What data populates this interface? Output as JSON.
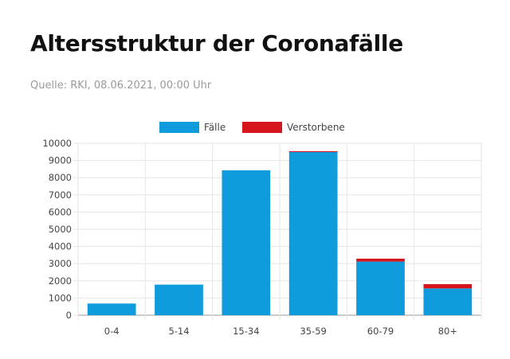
{
  "header": {
    "title": "Altersstruktur der Coronafälle",
    "source": "Quelle: RKI, 08.06.2021, 00:00 Uhr"
  },
  "colors": {
    "faelle": "#0f9bdc",
    "verstorbene": "#d7151c",
    "grid": "#e6e6e6",
    "axis": "#999999"
  },
  "chart_data": {
    "type": "bar",
    "stacked": true,
    "categories": [
      "0-4",
      "5-14",
      "15-34",
      "35-59",
      "60-79",
      "80+"
    ],
    "series": [
      {
        "name": "Fälle",
        "values": [
          680,
          1780,
          8430,
          9490,
          3120,
          1560
        ]
      },
      {
        "name": "Verstorbene",
        "values": [
          0,
          0,
          0,
          50,
          170,
          250
        ]
      }
    ],
    "yticks": [
      "0",
      "1000",
      "2000",
      "3000",
      "4000",
      "5000",
      "6000",
      "7000",
      "8000",
      "9000",
      "10000"
    ],
    "ylim": [
      0,
      10000
    ],
    "legend": "top-center",
    "grid": true
  }
}
